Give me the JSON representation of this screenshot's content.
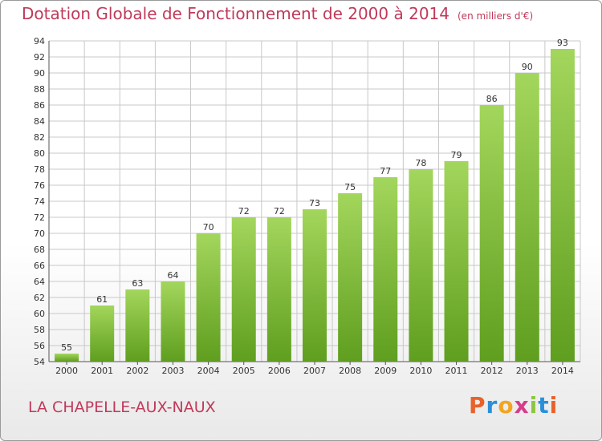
{
  "title": "Dotation Globale de Fonctionnement de 2000 à 2014",
  "subtitle": "(en milliers d'€)",
  "commune": "LA CHAPELLE-AUX-NAUX",
  "logo": {
    "text": "Proxiti",
    "letter_colors": [
      "#e8622a",
      "#2a8fd8",
      "#f2a51f",
      "#d63c8c",
      "#8cc63f",
      "#2a8fd8",
      "#e8622a"
    ]
  },
  "colors": {
    "bar_light": "#a3d65c",
    "bar_dark": "#5f9e1f",
    "title": "#c0395a",
    "grid": "#c8c8c8"
  },
  "chart_data": {
    "type": "bar",
    "categories": [
      "2000",
      "2001",
      "2002",
      "2003",
      "2004",
      "2005",
      "2006",
      "2007",
      "2008",
      "2009",
      "2010",
      "2011",
      "2012",
      "2013",
      "2014"
    ],
    "values": [
      55,
      61,
      63,
      64,
      70,
      72,
      72,
      73,
      75,
      77,
      78,
      79,
      86,
      90,
      93
    ],
    "ylim": [
      54,
      94
    ],
    "yticks": [
      54,
      56,
      58,
      60,
      62,
      64,
      66,
      68,
      70,
      72,
      74,
      76,
      78,
      80,
      82,
      84,
      86,
      88,
      90,
      92,
      94
    ],
    "grid": true,
    "data_labels": true
  }
}
